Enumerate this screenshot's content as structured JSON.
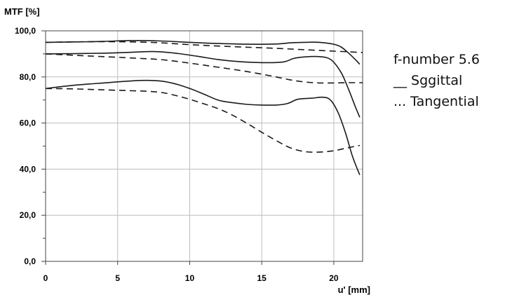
{
  "chart_data": {
    "type": "line",
    "title": "",
    "ylabel": "MTF [%]",
    "xlabel": "u' [mm]",
    "xlim": [
      0,
      22
    ],
    "ylim": [
      0,
      100
    ],
    "xticks": [
      0,
      5,
      10,
      15,
      20
    ],
    "xtick_labels": [
      "0",
      "5",
      "10",
      "15",
      "20"
    ],
    "yticks": [
      0,
      20,
      40,
      60,
      80,
      100
    ],
    "ytick_labels": [
      "0,0",
      "20,0",
      "40,0",
      "60,0",
      "80,0",
      "100,0"
    ],
    "grid": true,
    "legend": {
      "placement": "right",
      "lines": [
        "f-number 5.6",
        "__ Sggittal",
        "... Tangential"
      ]
    },
    "series": [
      {
        "name": "Sagittal",
        "style": "solid",
        "group": "high",
        "x": [
          0,
          2,
          4,
          6,
          8,
          10,
          12,
          14,
          16,
          17,
          18,
          19,
          20,
          20.5,
          21,
          21.5,
          21.8
        ],
        "y": [
          95,
          95.2,
          95.4,
          95.8,
          95.6,
          95.0,
          94.5,
          94.2,
          94.3,
          94.8,
          95.0,
          95.0,
          94.2,
          93,
          90.5,
          87.5,
          85.5
        ]
      },
      {
        "name": "Tangential",
        "style": "dashed",
        "group": "high",
        "x": [
          0,
          2,
          4,
          6,
          8,
          10,
          12,
          14,
          16,
          18,
          20,
          21,
          22
        ],
        "y": [
          95,
          95.2,
          95.3,
          95.2,
          94.8,
          94.0,
          93.4,
          92.9,
          92.4,
          91.8,
          91.2,
          90.9,
          90.6
        ]
      },
      {
        "name": "Sagittal",
        "style": "solid",
        "group": "mid",
        "x": [
          0,
          2,
          4,
          6,
          7.5,
          9,
          10.5,
          12,
          13.5,
          15,
          16.5,
          17.2,
          18,
          19,
          19.8,
          20.5,
          21,
          21.5,
          21.8
        ],
        "y": [
          90,
          90.1,
          90.3,
          90.7,
          91.0,
          90.3,
          89.0,
          87.5,
          86.6,
          86.2,
          86.5,
          88.0,
          88.7,
          88.8,
          87.5,
          82,
          75,
          67,
          62.5
        ]
      },
      {
        "name": "Tangential",
        "style": "dashed",
        "group": "mid",
        "x": [
          0,
          3,
          6,
          8,
          10,
          12,
          14,
          16,
          17,
          18,
          19,
          20,
          21,
          22
        ],
        "y": [
          90,
          89.1,
          88.2,
          87.5,
          86.0,
          84.2,
          82.3,
          80.0,
          78.7,
          77.8,
          77.4,
          77.4,
          77.5,
          77.5
        ]
      },
      {
        "name": "Sagittal",
        "style": "solid",
        "group": "low",
        "x": [
          0,
          2,
          4,
          6,
          7,
          8,
          9,
          10,
          11,
          12,
          13,
          14,
          15,
          16,
          16.8,
          17.5,
          18.5,
          19.3,
          19.8,
          20.3,
          20.8,
          21.3,
          21.8
        ],
        "y": [
          75,
          76.4,
          77.4,
          78.3,
          78.5,
          78.2,
          77.0,
          75.0,
          72.5,
          69.9,
          68.8,
          68.1,
          67.8,
          67.8,
          68.5,
          70.3,
          70.8,
          71.2,
          69.8,
          64.5,
          56,
          45.5,
          37.5
        ]
      },
      {
        "name": "Tangential",
        "style": "dashed",
        "group": "low",
        "x": [
          0,
          2,
          4,
          6,
          7,
          8,
          9,
          10,
          11,
          12,
          13,
          14,
          15,
          16,
          17,
          18,
          19,
          20,
          21,
          21.8
        ],
        "y": [
          75,
          74.8,
          74.4,
          74.0,
          73.8,
          73.3,
          72.0,
          70.3,
          68.3,
          66.2,
          63.3,
          59.8,
          56.0,
          52.4,
          49.2,
          47.6,
          47.4,
          48.0,
          49.3,
          50.3
        ]
      }
    ]
  },
  "colors": {
    "line": "#1a1a1a",
    "grid": "#bdbdbd",
    "frame": "#444444"
  }
}
